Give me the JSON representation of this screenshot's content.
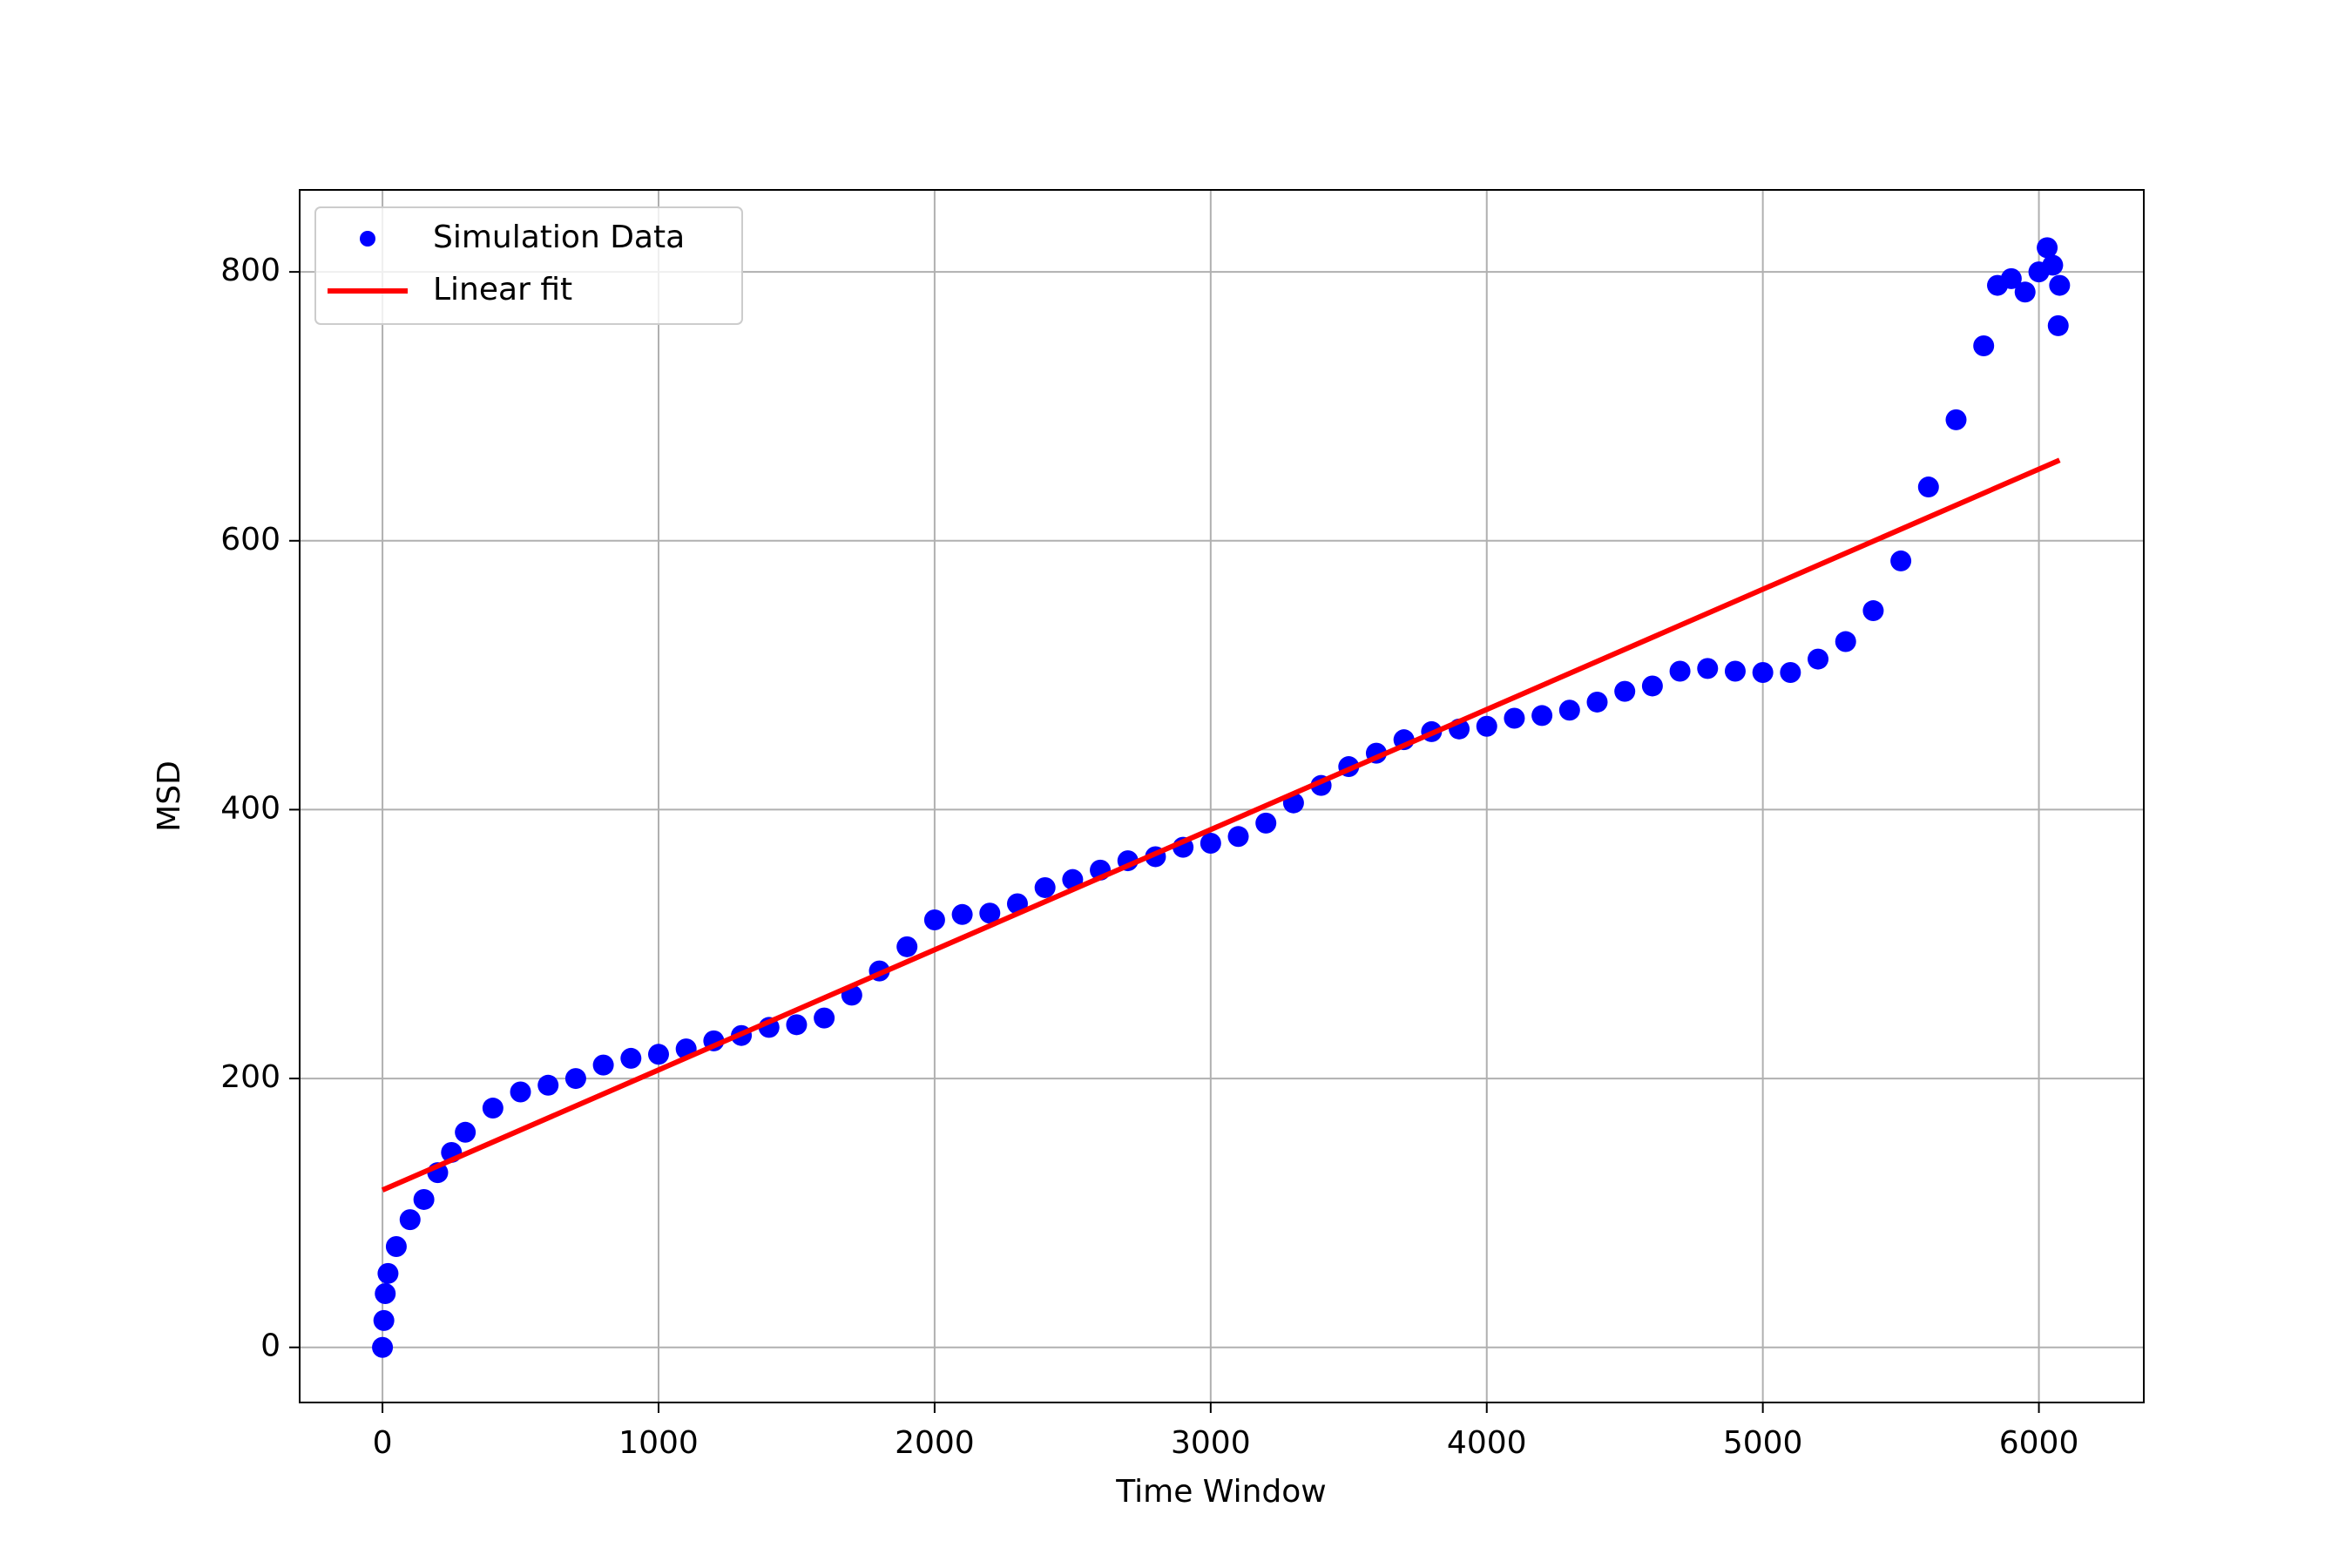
{
  "chart_data": {
    "type": "scatter",
    "xlabel": "Time Window",
    "ylabel": "MSD",
    "xlim": [
      -300,
      6380
    ],
    "ylim": [
      -41,
      861
    ],
    "xticks": [
      0,
      1000,
      2000,
      3000,
      4000,
      5000,
      6000
    ],
    "yticks": [
      0,
      200,
      400,
      600,
      800
    ],
    "grid": true,
    "legend": "upper left",
    "series": [
      {
        "name": "Simulation Data",
        "type": "scatter",
        "color": "#0000ff",
        "x": [
          0,
          5,
          10,
          20,
          50,
          100,
          150,
          200,
          250,
          300,
          400,
          500,
          600,
          700,
          800,
          900,
          1000,
          1100,
          1200,
          1300,
          1400,
          1500,
          1600,
          1700,
          1800,
          1900,
          2000,
          2100,
          2200,
          2300,
          2400,
          2500,
          2600,
          2700,
          2800,
          2900,
          3000,
          3100,
          3200,
          3300,
          3400,
          3500,
          3600,
          3700,
          3800,
          3900,
          4000,
          4100,
          4200,
          4300,
          4400,
          4500,
          4600,
          4700,
          4800,
          4900,
          5000,
          5100,
          5200,
          5300,
          5400,
          5500,
          5600,
          5700,
          5800,
          5850,
          5900,
          5950,
          6000,
          6030,
          6050,
          6070,
          6075
        ],
        "values": [
          0,
          20,
          40,
          55,
          75,
          95,
          110,
          130,
          145,
          160,
          178,
          190,
          195,
          200,
          210,
          215,
          218,
          222,
          228,
          232,
          238,
          240,
          245,
          262,
          280,
          298,
          318,
          322,
          323,
          330,
          342,
          348,
          355,
          362,
          365,
          372,
          375,
          380,
          390,
          405,
          418,
          432,
          442,
          452,
          458,
          460,
          462,
          468,
          470,
          474,
          480,
          488,
          492,
          503,
          505,
          503,
          502,
          502,
          512,
          525,
          548,
          585,
          640,
          690,
          745,
          790,
          795,
          785,
          800,
          818,
          805,
          760,
          790
        ]
      },
      {
        "name": "Linear fit",
        "type": "line",
        "color": "#ff0000",
        "x": [
          0,
          6075
        ],
        "values": [
          117,
          660
        ]
      }
    ]
  }
}
